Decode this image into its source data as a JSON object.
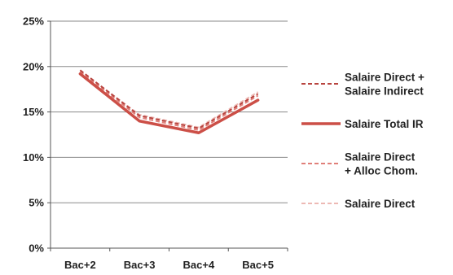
{
  "header_fragment": "",
  "chart_data": {
    "type": "line",
    "title": "",
    "xlabel": "",
    "ylabel": "",
    "categories": [
      "Bac+2",
      "Bac+3",
      "Bac+4",
      "Bac+5"
    ],
    "ylim": [
      0,
      25
    ],
    "yticks": [
      0,
      5,
      10,
      15,
      20,
      25
    ],
    "ytick_labels": [
      "0%",
      "5%",
      "10%",
      "15%",
      "20%",
      "25%"
    ],
    "grid": true,
    "legend_position": "right",
    "series": [
      {
        "name_lines": [
          "Salaire Direct +",
          "Salaire Indirect"
        ],
        "values": [
          19.6,
          14.6,
          13.2,
          17.0
        ],
        "color": "#b8443f",
        "dash": "5,3",
        "width": 2
      },
      {
        "name_lines": [
          "Salaire Total IR"
        ],
        "values": [
          19.2,
          14.0,
          12.7,
          16.3
        ],
        "color": "#cc4f47",
        "dash": "",
        "width": 3.5
      },
      {
        "name_lines": [
          "Salaire Direct",
          "+ Alloc Chom."
        ],
        "values": [
          19.4,
          14.4,
          13.0,
          16.8
        ],
        "color": "#e07f79",
        "dash": "5,3",
        "width": 2
      },
      {
        "name_lines": [
          "Salaire Direct"
        ],
        "values": [
          19.5,
          14.7,
          13.3,
          17.2
        ],
        "color": "#edb9b4",
        "dash": "5,3",
        "width": 2
      }
    ]
  }
}
